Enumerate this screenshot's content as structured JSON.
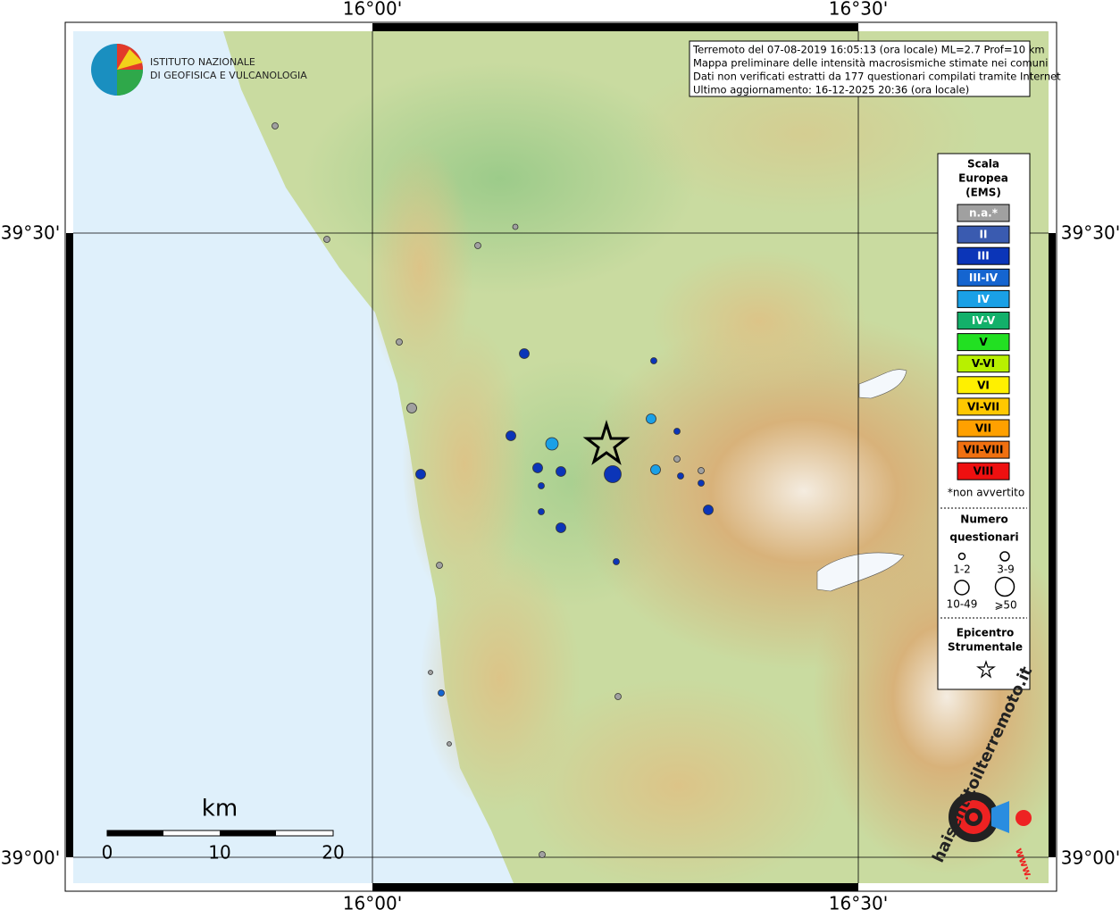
{
  "map": {
    "lon_labels": [
      "16°00'",
      "16°30'"
    ],
    "lat_labels": [
      "39°30'",
      "39°00'"
    ]
  },
  "logo": {
    "line1": "ISTITUTO NAZIONALE",
    "line2": "DI GEOFISICA E VULCANOLOGIA"
  },
  "info": {
    "lines": [
      "Terremoto del 07-08-2019 16:05:13 (ora locale) ML=2.7 Prof=10 km",
      "Mappa preliminare delle intensità macrosismiche stimate nei comuni",
      "Dati non verificati estratti da 177 questionari compilati tramite Internet",
      "Ultimo aggiornamento: 16-12-2025 20:36 (ora locale)"
    ]
  },
  "legend": {
    "title": [
      "Scala",
      "Europea",
      "(EMS)"
    ],
    "levels": [
      {
        "label": "n.a.*",
        "color": "#a0a0a0"
      },
      {
        "label": "II",
        "color": "#3a5bb0"
      },
      {
        "label": "III",
        "color": "#0b35b8"
      },
      {
        "label": "III-IV",
        "color": "#1565d0"
      },
      {
        "label": "IV",
        "color": "#1aa0e6"
      },
      {
        "label": "IV-V",
        "color": "#13b06a"
      },
      {
        "label": "V",
        "color": "#22e022"
      },
      {
        "label": "V-VI",
        "color": "#b8f000"
      },
      {
        "label": "VI",
        "color": "#fff000"
      },
      {
        "label": "VI-VII",
        "color": "#ffc800"
      },
      {
        "label": "VII",
        "color": "#ffa000"
      },
      {
        "label": "VII-VIII",
        "color": "#f07010"
      },
      {
        "label": "VIII",
        "color": "#ee1010"
      }
    ],
    "note": "*non avvertito",
    "count_title": [
      "Numero",
      "questionari"
    ],
    "count_labels": [
      "1-2",
      "3-9",
      "10-49",
      "⩾50"
    ],
    "epicenter_title": [
      "Epicentro",
      "Strumentale"
    ]
  },
  "scale_bar": {
    "unit": "km",
    "labels": [
      "0",
      "10",
      "20"
    ]
  },
  "badge": {
    "text": "haisentitoilterremoto.it",
    "prefix": "www."
  }
}
